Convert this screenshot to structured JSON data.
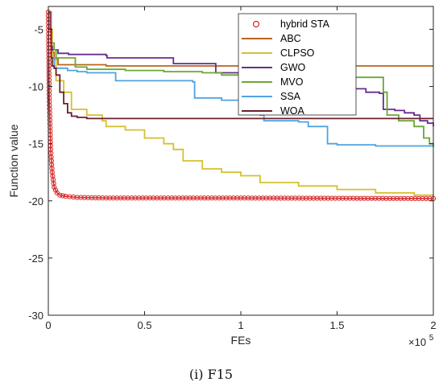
{
  "chart_data": {
    "type": "line",
    "title": "",
    "xlabel": "FEs",
    "ylabel": "Function value",
    "x_multiplier_label": "×10",
    "x_multiplier_exp": "5",
    "xlim": [
      0,
      2
    ],
    "ylim": [
      -30,
      -3
    ],
    "xticks": [
      "0",
      "0.5",
      "1",
      "1.5",
      "2"
    ],
    "xtick_values": [
      0,
      0.5,
      1,
      1.5,
      2
    ],
    "yticks": [
      "-5",
      "-10",
      "-15",
      "-20",
      "-25",
      "-30"
    ],
    "ytick_values": [
      -5,
      -10,
      -15,
      -20,
      -25,
      -30
    ],
    "grid": false,
    "legend_position": "top-right",
    "caption": "(i)  F15",
    "series": [
      {
        "name": "hybrid STA",
        "color": "#d62728",
        "marker": "circle",
        "points": [
          [
            0,
            -3.5
          ],
          [
            0.005,
            -11
          ],
          [
            0.012,
            -15.5
          ],
          [
            0.02,
            -17.5
          ],
          [
            0.03,
            -18.8
          ],
          [
            0.045,
            -19.3
          ],
          [
            0.06,
            -19.5
          ],
          [
            0.09,
            -19.6
          ],
          [
            0.15,
            -19.7
          ],
          [
            0.3,
            -19.75
          ],
          [
            1.0,
            -19.75
          ],
          [
            2.0,
            -19.8
          ]
        ]
      },
      {
        "name": "ABC",
        "color": "#b8651b",
        "points": [
          [
            0,
            -3.5
          ],
          [
            0.01,
            -5
          ],
          [
            0.015,
            -6.5
          ],
          [
            0.02,
            -7
          ],
          [
            0.03,
            -7.6
          ],
          [
            0.05,
            -8.1
          ],
          [
            0.15,
            -8.1
          ],
          [
            0.3,
            -8.2
          ],
          [
            2.0,
            -8.2
          ]
        ]
      },
      {
        "name": "CLPSO",
        "color": "#d4c12f",
        "points": [
          [
            0,
            -3.5
          ],
          [
            0.01,
            -5
          ],
          [
            0.02,
            -7.5
          ],
          [
            0.04,
            -9.5
          ],
          [
            0.08,
            -10.5
          ],
          [
            0.12,
            -12
          ],
          [
            0.15,
            -12
          ],
          [
            0.2,
            -12.5
          ],
          [
            0.28,
            -13
          ],
          [
            0.3,
            -13.5
          ],
          [
            0.4,
            -13.8
          ],
          [
            0.45,
            -13.8
          ],
          [
            0.5,
            -14.5
          ],
          [
            0.6,
            -15
          ],
          [
            0.65,
            -15.5
          ],
          [
            0.7,
            -16.5
          ],
          [
            0.8,
            -17.2
          ],
          [
            0.9,
            -17.5
          ],
          [
            1.0,
            -17.8
          ],
          [
            1.1,
            -18.4
          ],
          [
            1.3,
            -18.7
          ],
          [
            1.5,
            -19
          ],
          [
            1.7,
            -19.3
          ],
          [
            1.9,
            -19.5
          ],
          [
            2.0,
            -19.6
          ]
        ]
      },
      {
        "name": "GWO",
        "color": "#6a2c8e",
        "points": [
          [
            0,
            -3.5
          ],
          [
            0.015,
            -6.5
          ],
          [
            0.02,
            -6.8
          ],
          [
            0.05,
            -7.1
          ],
          [
            0.1,
            -7.1
          ],
          [
            0.105,
            -7.2
          ],
          [
            0.3,
            -7.3
          ],
          [
            0.305,
            -7.5
          ],
          [
            0.6,
            -7.5
          ],
          [
            0.65,
            -8.0
          ],
          [
            0.85,
            -8.0
          ],
          [
            0.87,
            -8.8
          ],
          [
            1.05,
            -8.8
          ],
          [
            1.1,
            -9.0
          ],
          [
            1.46,
            -9.1
          ],
          [
            1.47,
            -10.0
          ],
          [
            1.55,
            -10.2
          ],
          [
            1.65,
            -10.5
          ],
          [
            1.72,
            -10.6
          ],
          [
            1.74,
            -12.0
          ],
          [
            1.8,
            -12.1
          ],
          [
            1.85,
            -12.3
          ],
          [
            1.9,
            -12.5
          ],
          [
            1.93,
            -13.0
          ],
          [
            1.97,
            -13.2
          ],
          [
            2.0,
            -13.5
          ]
        ]
      },
      {
        "name": "MVO",
        "color": "#6aa834",
        "points": [
          [
            0,
            -3.5
          ],
          [
            0.01,
            -5
          ],
          [
            0.015,
            -6.2
          ],
          [
            0.02,
            -6.2
          ],
          [
            0.03,
            -6.8
          ],
          [
            0.04,
            -7.5
          ],
          [
            0.13,
            -7.5
          ],
          [
            0.14,
            -8.3
          ],
          [
            0.2,
            -8.5
          ],
          [
            0.4,
            -8.6
          ],
          [
            0.6,
            -8.7
          ],
          [
            0.8,
            -8.8
          ],
          [
            0.9,
            -9.0
          ],
          [
            1.3,
            -9.0
          ],
          [
            1.55,
            -9.2
          ],
          [
            1.6,
            -9.2
          ],
          [
            1.72,
            -9.2
          ],
          [
            1.74,
            -10.5
          ],
          [
            1.76,
            -12.5
          ],
          [
            1.8,
            -12.5
          ],
          [
            1.82,
            -13.0
          ],
          [
            1.9,
            -13.5
          ],
          [
            1.95,
            -14.5
          ],
          [
            1.98,
            -15.0
          ],
          [
            2.0,
            -15.2
          ]
        ]
      },
      {
        "name": "SSA",
        "color": "#4fa3e2",
        "points": [
          [
            0,
            -3.5
          ],
          [
            0.015,
            -7.5
          ],
          [
            0.03,
            -8.4
          ],
          [
            0.1,
            -8.6
          ],
          [
            0.15,
            -8.7
          ],
          [
            0.2,
            -8.8
          ],
          [
            0.35,
            -9.5
          ],
          [
            0.5,
            -9.5
          ],
          [
            0.75,
            -9.6
          ],
          [
            0.76,
            -11.0
          ],
          [
            0.8,
            -11.0
          ],
          [
            0.9,
            -11.2
          ],
          [
            1.0,
            -11.5
          ],
          [
            1.1,
            -12.5
          ],
          [
            1.12,
            -13.0
          ],
          [
            1.3,
            -13.1
          ],
          [
            1.35,
            -13.5
          ],
          [
            1.45,
            -15.0
          ],
          [
            1.5,
            -15.1
          ],
          [
            1.7,
            -15.2
          ],
          [
            2.0,
            -15.3
          ]
        ]
      },
      {
        "name": "WOA",
        "color": "#6b1f2e",
        "points": [
          [
            0,
            -3.5
          ],
          [
            0.01,
            -5
          ],
          [
            0.015,
            -7.5
          ],
          [
            0.02,
            -8.2
          ],
          [
            0.03,
            -8.4
          ],
          [
            0.04,
            -9.0
          ],
          [
            0.06,
            -10.5
          ],
          [
            0.08,
            -11.5
          ],
          [
            0.1,
            -12.3
          ],
          [
            0.12,
            -12.6
          ],
          [
            0.15,
            -12.7
          ],
          [
            0.2,
            -12.8
          ],
          [
            0.5,
            -12.8
          ],
          [
            1.0,
            -12.8
          ],
          [
            2.0,
            -12.8
          ]
        ]
      }
    ]
  }
}
